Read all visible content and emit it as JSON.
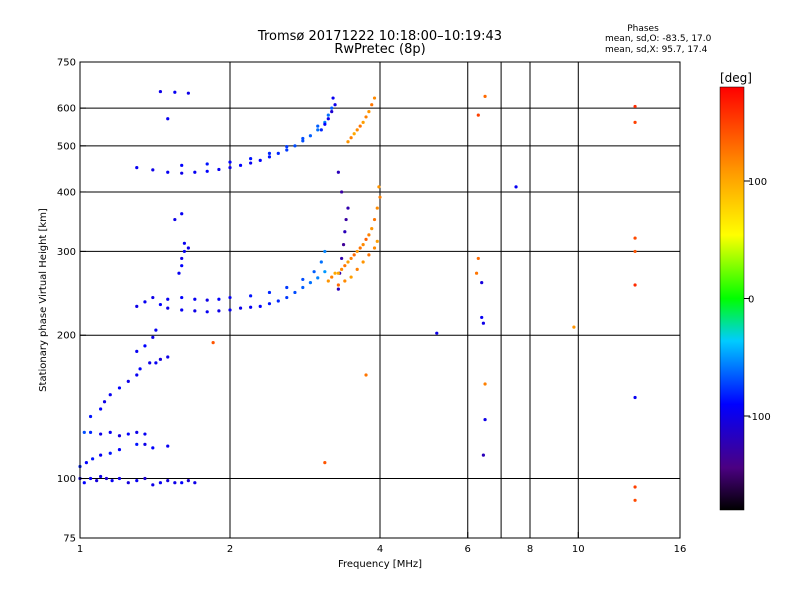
{
  "chart_data": {
    "type": "scatter",
    "title": "Tromsø 20171222 10:18:00–10:19:43",
    "subtitle": "RwPretec (8p)",
    "xlabel": "Frequency [MHz]",
    "ylabel": "Stationary phase Virtual Height [km]",
    "x_scale": "log",
    "y_scale": "log",
    "xlim": [
      1,
      16
    ],
    "ylim": [
      75,
      750
    ],
    "x_ticks": [
      1,
      2,
      4,
      6,
      8,
      10,
      16
    ],
    "y_ticks": [
      75,
      100,
      200,
      300,
      400,
      500,
      600,
      750
    ],
    "x_grid": [
      2,
      4,
      6,
      7,
      8,
      10
    ],
    "y_grid": [
      100,
      200,
      300,
      400,
      500,
      600
    ],
    "grid": true,
    "legend": {
      "title": "Phases",
      "lines": [
        "mean, sd,O: -83.5, 17.0",
        "mean, sd,X:  95.7, 17.4"
      ],
      "placement": "top-right"
    },
    "colorbar": {
      "label": "[deg]",
      "min": -180,
      "max": 180,
      "ticks": [
        -100,
        0,
        100
      ],
      "colormap": "rainbow"
    },
    "series": [
      {
        "mode": "O",
        "points": [
          [
            1.0,
            100,
            -100
          ],
          [
            1.02,
            98,
            -90
          ],
          [
            1.05,
            100,
            -95
          ],
          [
            1.08,
            99,
            -105
          ],
          [
            1.1,
            101,
            -100
          ],
          [
            1.13,
            100,
            -110
          ],
          [
            1.16,
            99,
            -95
          ],
          [
            1.2,
            100,
            -100
          ],
          [
            1.25,
            98,
            -105
          ],
          [
            1.3,
            99,
            -95
          ],
          [
            1.35,
            100,
            -110
          ],
          [
            1.4,
            97,
            -100
          ],
          [
            1.45,
            98,
            -95
          ],
          [
            1.5,
            99,
            -105
          ],
          [
            1.55,
            98,
            -100
          ],
          [
            1.6,
            98,
            -90
          ],
          [
            1.65,
            99,
            -110
          ],
          [
            1.7,
            98,
            -100
          ],
          [
            1.0,
            106,
            -80
          ],
          [
            1.03,
            108,
            -90
          ],
          [
            1.06,
            110,
            -85
          ],
          [
            1.1,
            112,
            -95
          ],
          [
            1.15,
            113,
            -85
          ],
          [
            1.2,
            115,
            -90
          ],
          [
            1.3,
            118,
            -85
          ],
          [
            1.35,
            118,
            -100
          ],
          [
            1.4,
            116,
            -90
          ],
          [
            1.5,
            117,
            -95
          ],
          [
            1.02,
            125,
            -70
          ],
          [
            1.05,
            125,
            -80
          ],
          [
            1.1,
            124,
            -100
          ],
          [
            1.15,
            125,
            -95
          ],
          [
            1.2,
            123,
            -105
          ],
          [
            1.25,
            124,
            -90
          ],
          [
            1.3,
            125,
            -100
          ],
          [
            1.35,
            124,
            -95
          ],
          [
            1.05,
            135,
            -85
          ],
          [
            1.1,
            140,
            -90
          ],
          [
            1.12,
            145,
            -100
          ],
          [
            1.15,
            150,
            -95
          ],
          [
            1.2,
            155,
            -90
          ],
          [
            1.25,
            160,
            -100
          ],
          [
            1.3,
            165,
            -95
          ],
          [
            1.32,
            170,
            -90
          ],
          [
            1.38,
            175,
            -100
          ],
          [
            1.42,
            175,
            -95
          ],
          [
            1.45,
            178,
            -105
          ],
          [
            1.5,
            180,
            -100
          ],
          [
            1.3,
            185,
            -95
          ],
          [
            1.35,
            190,
            -90
          ],
          [
            1.4,
            198,
            -100
          ],
          [
            1.42,
            205,
            -95
          ],
          [
            1.3,
            230,
            -100
          ],
          [
            1.35,
            235,
            -95
          ],
          [
            1.4,
            240,
            -100
          ],
          [
            1.45,
            232,
            -90
          ],
          [
            1.5,
            228,
            -100
          ],
          [
            1.6,
            226,
            -95
          ],
          [
            1.7,
            225,
            -100
          ],
          [
            1.8,
            224,
            -95
          ],
          [
            1.9,
            225,
            -100
          ],
          [
            2.0,
            226,
            -95
          ],
          [
            2.1,
            228,
            -100
          ],
          [
            2.2,
            229,
            -95
          ],
          [
            2.3,
            230,
            -90
          ],
          [
            2.4,
            233,
            -85
          ],
          [
            2.5,
            236,
            -80
          ],
          [
            2.6,
            240,
            -75
          ],
          [
            2.7,
            246,
            -70
          ],
          [
            2.8,
            252,
            -65
          ],
          [
            2.9,
            258,
            -60
          ],
          [
            3.0,
            264,
            -55
          ],
          [
            3.1,
            272,
            -50
          ],
          [
            1.5,
            238,
            -95
          ],
          [
            1.6,
            240,
            -90
          ],
          [
            1.7,
            238,
            -95
          ],
          [
            1.8,
            237,
            -100
          ],
          [
            1.9,
            238,
            -90
          ],
          [
            2.0,
            240,
            -95
          ],
          [
            2.2,
            242,
            -85
          ],
          [
            2.4,
            246,
            -80
          ],
          [
            2.6,
            252,
            -75
          ],
          [
            2.8,
            262,
            -70
          ],
          [
            2.95,
            272,
            -65
          ],
          [
            3.05,
            285,
            -60
          ],
          [
            3.1,
            300,
            -55
          ],
          [
            1.6,
            290,
            -100
          ],
          [
            1.62,
            300,
            -95
          ],
          [
            1.65,
            305,
            -100
          ],
          [
            1.62,
            312,
            -95
          ],
          [
            1.6,
            280,
            -90
          ],
          [
            1.58,
            270,
            -95
          ],
          [
            1.55,
            350,
            -100
          ],
          [
            1.6,
            360,
            -95
          ],
          [
            1.3,
            450,
            -95
          ],
          [
            1.4,
            445,
            -100
          ],
          [
            1.5,
            440,
            -95
          ],
          [
            1.6,
            438,
            -100
          ],
          [
            1.7,
            440,
            -95
          ],
          [
            1.8,
            442,
            -90
          ],
          [
            1.9,
            446,
            -95
          ],
          [
            2.0,
            450,
            -100
          ],
          [
            2.1,
            455,
            -90
          ],
          [
            2.2,
            460,
            -95
          ],
          [
            2.3,
            466,
            -90
          ],
          [
            2.4,
            474,
            -85
          ],
          [
            2.5,
            482,
            -80
          ],
          [
            2.6,
            490,
            -75
          ],
          [
            2.7,
            500,
            -70
          ],
          [
            2.8,
            512,
            -70
          ],
          [
            2.9,
            525,
            -65
          ],
          [
            3.0,
            540,
            -60
          ],
          [
            3.1,
            560,
            -55
          ],
          [
            3.15,
            580,
            -60
          ],
          [
            3.2,
            600,
            -65
          ],
          [
            1.6,
            455,
            -90
          ],
          [
            1.8,
            458,
            -85
          ],
          [
            2.0,
            462,
            -90
          ],
          [
            2.2,
            470,
            -85
          ],
          [
            2.4,
            482,
            -80
          ],
          [
            2.6,
            498,
            -75
          ],
          [
            2.8,
            518,
            -70
          ],
          [
            3.0,
            550,
            -65
          ],
          [
            3.05,
            540,
            -80
          ],
          [
            3.1,
            555,
            -90
          ],
          [
            3.15,
            570,
            -100
          ],
          [
            3.2,
            590,
            -110
          ],
          [
            3.25,
            610,
            -100
          ],
          [
            3.22,
            630,
            -95
          ],
          [
            1.45,
            650,
            -100
          ],
          [
            1.55,
            648,
            -95
          ],
          [
            1.65,
            645,
            -100
          ],
          [
            1.5,
            570,
            -95
          ],
          [
            3.3,
            250,
            -120
          ],
          [
            3.32,
            270,
            -130
          ],
          [
            3.35,
            290,
            -125
          ],
          [
            3.38,
            310,
            -135
          ],
          [
            3.4,
            330,
            -120
          ],
          [
            3.42,
            350,
            -130
          ],
          [
            3.45,
            370,
            -125
          ],
          [
            3.35,
            400,
            -130
          ],
          [
            3.3,
            440,
            -120
          ],
          [
            5.2,
            202,
            -100
          ],
          [
            6.4,
            218,
            -95
          ],
          [
            6.45,
            212,
            -100
          ],
          [
            6.4,
            258,
            -105
          ],
          [
            6.5,
            133,
            -100
          ],
          [
            6.45,
            112,
            -120
          ],
          [
            7.5,
            410,
            -95
          ],
          [
            13.0,
            148,
            -95
          ]
        ]
      },
      {
        "mode": "X",
        "points": [
          [
            3.15,
            260,
            110
          ],
          [
            3.2,
            265,
            120
          ],
          [
            3.25,
            270,
            100
          ],
          [
            3.3,
            255,
            130
          ],
          [
            3.35,
            275,
            115
          ],
          [
            3.4,
            280,
            125
          ],
          [
            3.45,
            285,
            105
          ],
          [
            3.5,
            290,
            120
          ],
          [
            3.55,
            295,
            130
          ],
          [
            3.6,
            300,
            110
          ],
          [
            3.65,
            305,
            125
          ],
          [
            3.7,
            310,
            115
          ],
          [
            3.75,
            318,
            135
          ],
          [
            3.8,
            325,
            120
          ],
          [
            3.85,
            335,
            110
          ],
          [
            3.9,
            350,
            125
          ],
          [
            3.95,
            370,
            115
          ],
          [
            4.0,
            390,
            120
          ],
          [
            3.98,
            410,
            110
          ],
          [
            3.3,
            270,
            100
          ],
          [
            3.4,
            260,
            115
          ],
          [
            3.5,
            265,
            105
          ],
          [
            3.6,
            275,
            120
          ],
          [
            3.7,
            285,
            110
          ],
          [
            3.8,
            295,
            125
          ],
          [
            3.9,
            305,
            115
          ],
          [
            3.95,
            315,
            105
          ],
          [
            3.45,
            510,
            110
          ],
          [
            3.5,
            520,
            120
          ],
          [
            3.55,
            530,
            100
          ],
          [
            3.6,
            540,
            115
          ],
          [
            3.65,
            550,
            125
          ],
          [
            3.7,
            560,
            105
          ],
          [
            3.75,
            575,
            120
          ],
          [
            3.8,
            590,
            110
          ],
          [
            3.85,
            610,
            125
          ],
          [
            3.9,
            630,
            115
          ],
          [
            1.85,
            193,
            140
          ],
          [
            3.1,
            108,
            140
          ],
          [
            3.75,
            165,
            125
          ],
          [
            6.3,
            290,
            130
          ],
          [
            6.25,
            270,
            125
          ],
          [
            6.3,
            580,
            150
          ],
          [
            6.5,
            635,
            130
          ],
          [
            6.5,
            158,
            120
          ],
          [
            9.8,
            208,
            110
          ],
          [
            13.0,
            605,
            160
          ],
          [
            13.0,
            560,
            150
          ],
          [
            13.0,
            320,
            145
          ],
          [
            13.0,
            300,
            140
          ],
          [
            13.0,
            255,
            160
          ],
          [
            13.0,
            96,
            150
          ],
          [
            13.0,
            90,
            145
          ]
        ]
      }
    ]
  }
}
